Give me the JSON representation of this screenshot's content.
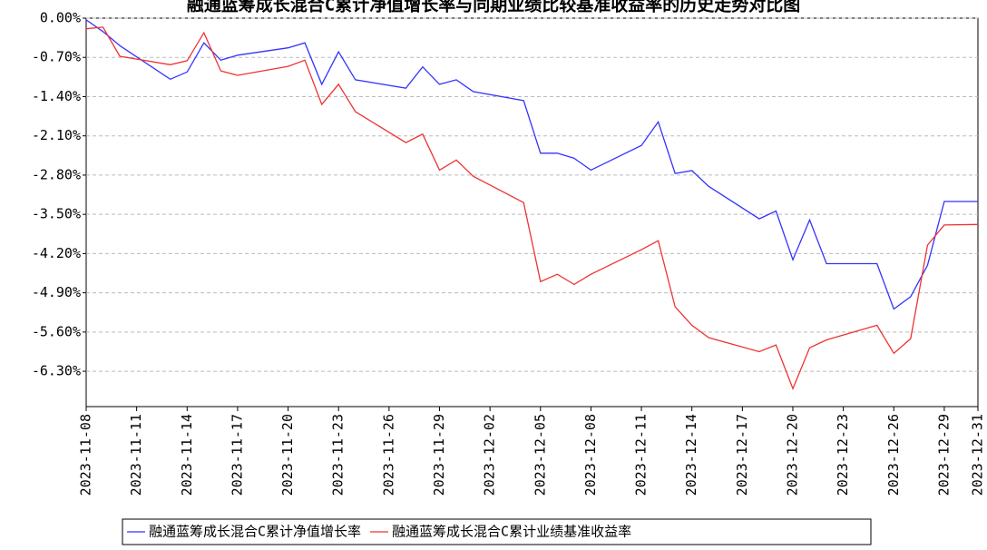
{
  "chart_data": {
    "type": "line",
    "title": "融通蓝筹成长混合C累计净值增长率与同期业绩比较基准收益率的历史走势对比图",
    "x": [
      "2023-11-08",
      "2023-11-09",
      "2023-11-10",
      "2023-11-13",
      "2023-11-14",
      "2023-11-15",
      "2023-11-16",
      "2023-11-17",
      "2023-11-20",
      "2023-11-21",
      "2023-11-22",
      "2023-11-23",
      "2023-11-24",
      "2023-11-27",
      "2023-11-28",
      "2023-11-29",
      "2023-11-30",
      "2023-12-01",
      "2023-12-04",
      "2023-12-05",
      "2023-12-06",
      "2023-12-07",
      "2023-12-08",
      "2023-12-11",
      "2023-12-12",
      "2023-12-13",
      "2023-12-14",
      "2023-12-15",
      "2023-12-18",
      "2023-12-19",
      "2023-12-20",
      "2023-12-21",
      "2023-12-22",
      "2023-12-25",
      "2023-12-26",
      "2023-12-27",
      "2023-12-28",
      "2023-12-29",
      "2023-12-31"
    ],
    "series": [
      {
        "name": "融通蓝筹成长混合C累计净值增长率",
        "color": "#3333ff",
        "values": [
          -0.03,
          -0.24,
          -0.49,
          -1.09,
          -0.96,
          -0.44,
          -0.75,
          -0.66,
          -0.53,
          -0.44,
          -1.18,
          -0.6,
          -1.1,
          -1.25,
          -0.87,
          -1.18,
          -1.1,
          -1.31,
          -1.47,
          -2.41,
          -2.41,
          -2.5,
          -2.71,
          -2.27,
          -1.85,
          -2.77,
          -2.72,
          -3.0,
          -3.58,
          -3.44,
          -4.31,
          -3.6,
          -4.38,
          -4.38,
          -5.19,
          -4.97,
          -4.41,
          -3.27,
          -3.27
        ]
      },
      {
        "name": "融通蓝筹成长混合C累计业绩基准收益率",
        "color": "#ee3333",
        "values": [
          -0.19,
          -0.16,
          -0.68,
          -0.83,
          -0.76,
          -0.26,
          -0.94,
          -1.02,
          -0.86,
          -0.75,
          -1.54,
          -1.18,
          -1.67,
          -2.22,
          -2.07,
          -2.71,
          -2.53,
          -2.82,
          -3.29,
          -4.7,
          -4.57,
          -4.75,
          -4.57,
          -4.13,
          -3.97,
          -5.15,
          -5.48,
          -5.7,
          -5.95,
          -5.83,
          -6.61,
          -5.88,
          -5.74,
          -5.48,
          -5.98,
          -5.72,
          -4.05,
          -3.69,
          -3.68
        ]
      }
    ],
    "xlim": [
      "2023-11-08",
      "2023-12-31"
    ],
    "xticks": [
      "2023-11-08",
      "2023-11-11",
      "2023-11-14",
      "2023-11-17",
      "2023-11-20",
      "2023-11-23",
      "2023-11-26",
      "2023-11-29",
      "2023-12-02",
      "2023-12-05",
      "2023-12-08",
      "2023-12-11",
      "2023-12-14",
      "2023-12-17",
      "2023-12-20",
      "2023-12-23",
      "2023-12-26",
      "2023-12-29",
      "2023-12-31"
    ],
    "ylim": [
      -6.93,
      0
    ],
    "yticks": [
      {
        "value": 0,
        "label": "0.00%"
      },
      {
        "value": -0.7,
        "label": "-0.70%"
      },
      {
        "value": -1.4,
        "label": "-1.40%"
      },
      {
        "value": -2.1,
        "label": "-2.10%"
      },
      {
        "value": -2.8,
        "label": "-2.80%"
      },
      {
        "value": -3.5,
        "label": "-3.50%"
      },
      {
        "value": -4.2,
        "label": "-4.20%"
      },
      {
        "value": -4.9,
        "label": "-4.90%"
      },
      {
        "value": -5.6,
        "label": "-5.60%"
      },
      {
        "value": -6.3,
        "label": "-6.30%"
      }
    ],
    "grid": true
  }
}
